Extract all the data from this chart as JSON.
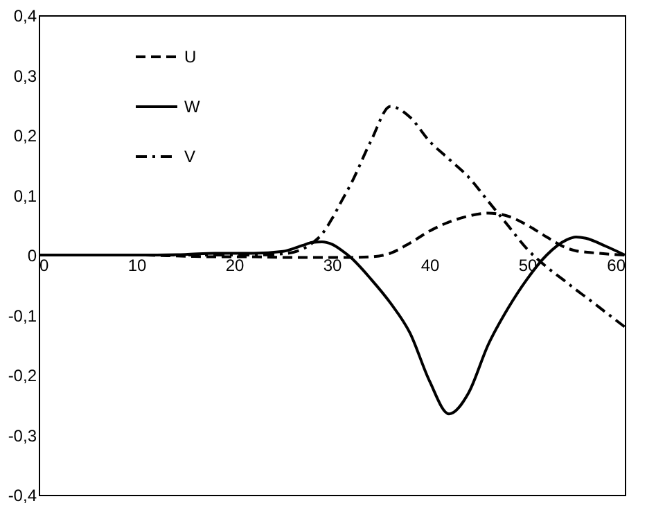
{
  "chart_data": {
    "type": "line",
    "x": [
      0,
      5,
      10,
      15,
      18,
      20,
      22,
      25,
      27,
      28,
      29,
      30,
      31,
      32,
      34,
      36,
      38,
      40,
      42,
      44,
      46,
      48,
      50,
      52,
      54,
      55,
      56,
      58,
      60
    ],
    "series": [
      {
        "name": "U",
        "color": "#000000",
        "line_style": "dashed",
        "values": [
          0,
          0,
          0,
          -0.002,
          -0.003,
          -0.003,
          -0.003,
          -0.004,
          -0.004,
          -0.004,
          -0.004,
          -0.004,
          -0.004,
          -0.004,
          -0.003,
          0.003,
          0.02,
          0.04,
          0.055,
          0.065,
          0.07,
          0.065,
          0.05,
          0.03,
          0.012,
          0.007,
          0.005,
          0.002,
          0
        ]
      },
      {
        "name": "W",
        "color": "#000000",
        "line_style": "solid",
        "values": [
          0,
          0,
          0,
          0.001,
          0.003,
          0.003,
          0.003,
          0.006,
          0.016,
          0.021,
          0.022,
          0.018,
          0.008,
          -0.005,
          -0.04,
          -0.08,
          -0.13,
          -0.21,
          -0.265,
          -0.23,
          -0.15,
          -0.09,
          -0.04,
          0.0,
          0.025,
          0.03,
          0.028,
          0.015,
          0
        ]
      },
      {
        "name": "V",
        "color": "#000000",
        "line_style": "dashdot",
        "values": [
          0,
          0,
          0,
          0,
          0,
          0,
          0,
          0.002,
          0.01,
          0.02,
          0.035,
          0.06,
          0.09,
          0.12,
          0.19,
          0.248,
          0.23,
          0.19,
          0.16,
          0.13,
          0.09,
          0.05,
          0.01,
          -0.02,
          -0.045,
          -0.058,
          -0.07,
          -0.095,
          -0.12
        ]
      }
    ],
    "xlim": [
      0,
      60
    ],
    "xticks": [
      0,
      10,
      20,
      30,
      40,
      50,
      60
    ],
    "ylim": [
      -0.4,
      0.4
    ],
    "yticks": [
      {
        "value": -0.4,
        "label": "-0,4"
      },
      {
        "value": -0.3,
        "label": "-0,3"
      },
      {
        "value": -0.2,
        "label": "-0,2"
      },
      {
        "value": -0.1,
        "label": "-0,1"
      },
      0,
      {
        "value": 0.1,
        "label": "0,1"
      },
      {
        "value": 0.2,
        "label": "0,2"
      },
      {
        "value": 0.3,
        "label": "0,3"
      },
      {
        "value": 0.4,
        "label": "0,4"
      }
    ],
    "legend": "top left",
    "grid": false
  }
}
